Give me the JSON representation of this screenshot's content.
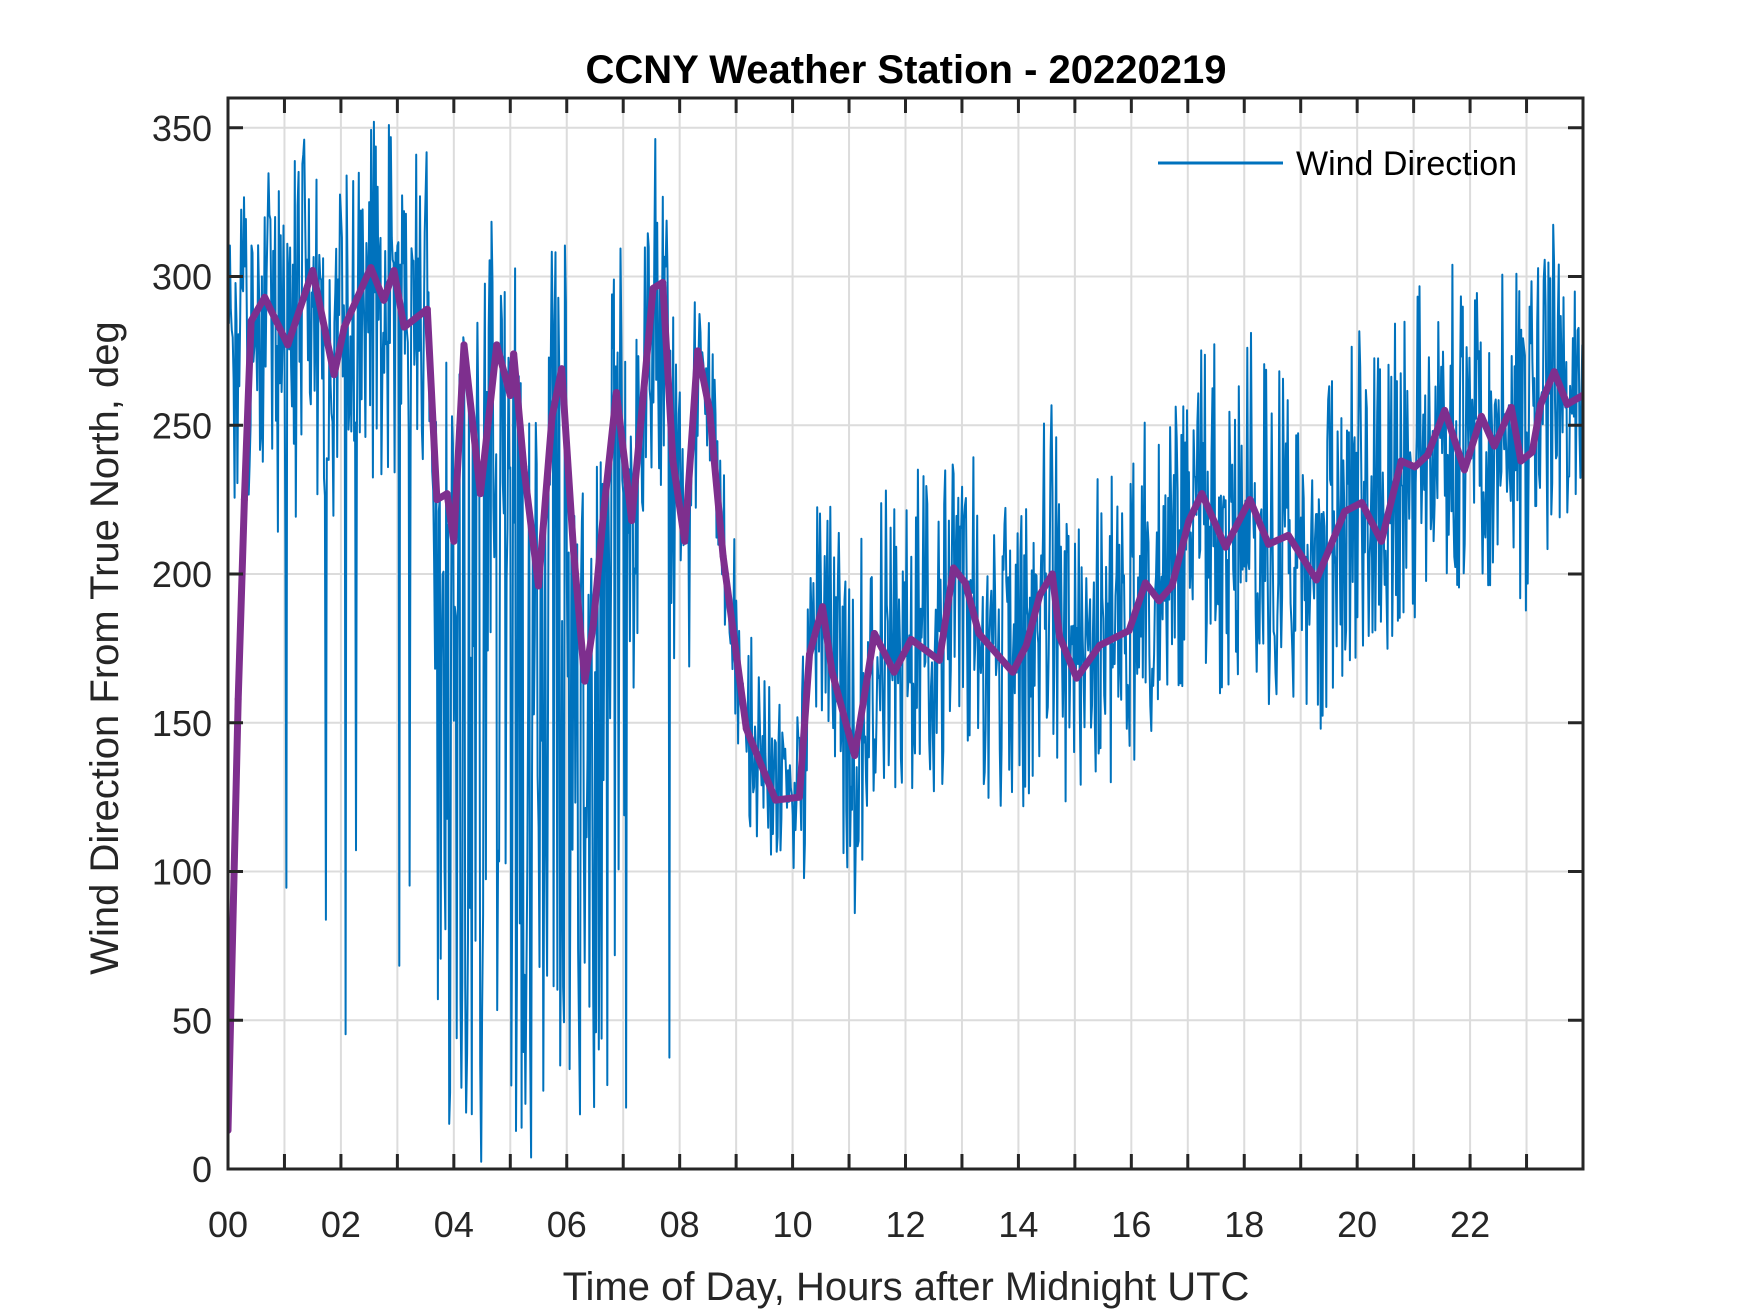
{
  "chart_data": {
    "type": "line",
    "title": "CCNY Weather Station - 20220219",
    "xlabel": "Time of Day, Hours after Midnight UTC",
    "ylabel": "Wind Direction From True North, deg",
    "xlim": [
      0,
      24
    ],
    "ylim": [
      0,
      360
    ],
    "x_ticks": [
      0,
      2,
      4,
      6,
      8,
      10,
      12,
      14,
      16,
      18,
      20,
      22
    ],
    "x_tick_labels": [
      "00",
      "02",
      "04",
      "06",
      "08",
      "10",
      "12",
      "14",
      "16",
      "18",
      "20",
      "22"
    ],
    "x_minor_ticks_every_hours": 1,
    "y_ticks": [
      0,
      50,
      100,
      150,
      200,
      250,
      300,
      350
    ],
    "y_tick_labels": [
      "0",
      "50",
      "100",
      "150",
      "200",
      "250",
      "300",
      "350"
    ],
    "grid": true,
    "legend": {
      "position": "top-right",
      "entries": [
        "Wind Direction"
      ],
      "box": false
    },
    "series": [
      {
        "name": "Wind Direction",
        "color": "#0072BD",
        "kind": "raw 1-minute samples (noisy trace around moving average)",
        "sample_interval_hours": 0.01667,
        "envelope": [
          {
            "from": 0.0,
            "to": 0.5,
            "spread_up": 45,
            "spread_down": 60,
            "deep_drop_rate": 0.0
          },
          {
            "from": 0.5,
            "to": 3.5,
            "spread_up": 55,
            "spread_down": 70,
            "deep_drop_rate": 0.06
          },
          {
            "from": 3.5,
            "to": 7.15,
            "spread_up": 60,
            "spread_down": 90,
            "deep_drop_rate": 0.35
          },
          {
            "from": 7.15,
            "to": 8.3,
            "spread_up": 50,
            "spread_down": 70,
            "deep_drop_rate": 0.04
          },
          {
            "from": 8.3,
            "to": 10.2,
            "spread_up": 35,
            "spread_down": 30,
            "deep_drop_rate": 0.0
          },
          {
            "from": 10.2,
            "to": 24.0,
            "spread_up": 60,
            "spread_down": 55,
            "deep_drop_rate": 0.0
          }
        ],
        "max_value": 352,
        "min_value": 0
      },
      {
        "name": "Moving Average",
        "color": "#7E2F8E",
        "in_legend": false,
        "x": [
          0.0,
          0.18,
          0.29,
          0.41,
          0.65,
          1.06,
          1.5,
          1.88,
          2.06,
          2.53,
          2.76,
          2.94,
          3.12,
          3.53,
          3.7,
          3.88,
          4.0,
          4.18,
          4.47,
          4.76,
          5.0,
          5.06,
          5.24,
          5.5,
          5.74,
          5.91,
          6.12,
          6.32,
          6.47,
          6.65,
          6.88,
          7.15,
          7.35,
          7.53,
          7.7,
          7.88,
          8.09,
          8.32,
          8.53,
          8.77,
          9.18,
          9.7,
          10.12,
          10.3,
          10.53,
          10.7,
          11.1,
          11.45,
          11.8,
          12.1,
          12.6,
          12.85,
          13.06,
          13.3,
          13.9,
          14.14,
          14.38,
          14.6,
          14.73,
          15.03,
          15.44,
          15.96,
          16.25,
          16.49,
          16.72,
          17.02,
          17.25,
          17.67,
          18.1,
          18.43,
          18.78,
          19.28,
          19.78,
          20.08,
          20.43,
          20.78,
          21.02,
          21.25,
          21.55,
          21.9,
          22.2,
          22.43,
          22.73,
          22.9,
          23.1,
          23.25,
          23.49,
          23.72,
          23.99
        ],
        "y": [
          13,
          158,
          225,
          285,
          293,
          277,
          302,
          267,
          283,
          303,
          292,
          302,
          283,
          289,
          225,
          227,
          211,
          277,
          227,
          277,
          260,
          274,
          236,
          196,
          253,
          269,
          208,
          164,
          183,
          220,
          261,
          218,
          259,
          296,
          298,
          238,
          211,
          275,
          255,
          206,
          148,
          124,
          125,
          173,
          189,
          167,
          139,
          180,
          167,
          178,
          171,
          202,
          197,
          180,
          167,
          176,
          193,
          200,
          179,
          165,
          176,
          181,
          197,
          191,
          196,
          218,
          227,
          209,
          225,
          210,
          213,
          198,
          221,
          224,
          211,
          238,
          236,
          240,
          255,
          235,
          253,
          243,
          256,
          238,
          241,
          257,
          268,
          257,
          260
        ]
      }
    ]
  }
}
